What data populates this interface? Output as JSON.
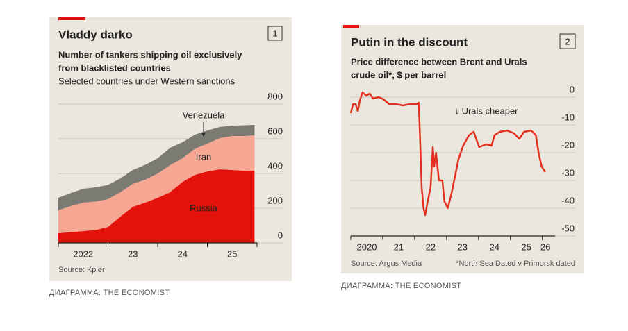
{
  "chart_data": [
    {
      "type": "area",
      "stacked": true,
      "title": "Vladdy darko",
      "badge": "1",
      "subtitle": [
        "Number of tankers shipping oil exclusively",
        "from blacklisted countries"
      ],
      "subtitle2": "Selected countries under Western sanctions",
      "source": "Source: Kpler",
      "x": [
        2022.0,
        2022.25,
        2022.5,
        2022.75,
        2023.0,
        2023.25,
        2023.5,
        2023.75,
        2024.0,
        2024.25,
        2024.5,
        2024.75,
        2025.0,
        2025.25,
        2025.5,
        2025.75,
        2025.95
      ],
      "series": [
        {
          "name": "Russia",
          "color": "#e3120b",
          "values": [
            56,
            62,
            68,
            74,
            92,
            152,
            208,
            232,
            260,
            292,
            352,
            392,
            412,
            424,
            420,
            416,
            416
          ]
        },
        {
          "name": "Iran",
          "color": "#f5a793",
          "values": [
            132,
            150,
            164,
            164,
            160,
            140,
            132,
            132,
            140,
            156,
            136,
            150,
            160,
            180,
            196,
            200,
            204
          ]
        },
        {
          "name": "Venezuela",
          "color": "#7c7b73",
          "values": [
            72,
            75,
            80,
            82,
            82,
            80,
            80,
            86,
            88,
            100,
            92,
            82,
            76,
            64,
            60,
            62,
            60
          ]
        }
      ],
      "xlim": [
        2022,
        2026
      ],
      "xticks": [
        {
          "value": 2022.5,
          "label": "2022"
        },
        {
          "value": 2023.5,
          "label": "23"
        },
        {
          "value": 2024.5,
          "label": "24"
        },
        {
          "value": 2025.5,
          "label": "25"
        }
      ],
      "xtick_marks": [
        2022,
        2023,
        2024,
        2025,
        2026
      ],
      "ylim": [
        0,
        800
      ],
      "yticks": [
        0,
        200,
        400,
        600,
        800
      ],
      "grid": true
    },
    {
      "type": "line",
      "title": "Putin in the discount",
      "badge": "2",
      "subtitle": [
        "Price difference between Brent and Urals",
        "crude oil*, $ per barrel"
      ],
      "source": "Source: Argus Media",
      "note": "*North Sea Dated v Primorsk dated",
      "annotation": "↓ Urals cheaper",
      "x": [
        2020.0,
        2020.07,
        2020.15,
        2020.22,
        2020.28,
        2020.37,
        2020.48,
        2020.59,
        2020.7,
        2020.87,
        2021.02,
        2021.2,
        2021.41,
        2021.63,
        2021.85,
        2022.07,
        2022.13,
        2022.17,
        2022.22,
        2022.28,
        2022.33,
        2022.41,
        2022.5,
        2022.57,
        2022.61,
        2022.67,
        2022.76,
        2022.87,
        2022.93,
        2023.04,
        2023.15,
        2023.26,
        2023.37,
        2023.52,
        2023.7,
        2023.85,
        2024.02,
        2024.24,
        2024.41,
        2024.5,
        2024.67,
        2024.89,
        2025.11,
        2025.28,
        2025.43,
        2025.65,
        2025.8,
        2025.89,
        2025.98,
        2026.09
      ],
      "series": [
        {
          "name": "Brent minus Urals",
          "color": "#e3301f",
          "values": [
            -5.75,
            -2.5,
            -2.5,
            -5,
            -1.25,
            1.75,
            0.5,
            1.25,
            -0.5,
            0,
            -0.75,
            -2.5,
            -2.5,
            -3,
            -2.5,
            -2.5,
            -2,
            -15,
            -32.5,
            -40,
            -42.5,
            -37.5,
            -32.5,
            -18,
            -25,
            -20,
            -30,
            -30,
            -37.5,
            -40,
            -35,
            -28.75,
            -22.5,
            -17.5,
            -13.75,
            -12.5,
            -18,
            -17,
            -17.5,
            -13.75,
            -12.5,
            -12,
            -13,
            -15,
            -12.5,
            -12,
            -13.75,
            -20.5,
            -25,
            -27
          ]
        }
      ],
      "xlim": [
        2020,
        2026.4
      ],
      "xticks": [
        {
          "value": 2020.5,
          "label": "2020"
        },
        {
          "value": 2021.5,
          "label": "21"
        },
        {
          "value": 2022.5,
          "label": "22"
        },
        {
          "value": 2023.5,
          "label": "23"
        },
        {
          "value": 2024.5,
          "label": "24"
        },
        {
          "value": 2025.5,
          "label": "25"
        },
        {
          "value": 2026.1,
          "label": "26"
        }
      ],
      "xtick_marks": [
        2020,
        2021,
        2022,
        2023,
        2024,
        2025,
        2026
      ],
      "ylim": [
        -50,
        0
      ],
      "yticks": [
        0,
        -10,
        -20,
        -30,
        -40,
        -50
      ],
      "grid": true
    }
  ],
  "captions": [
    "ДИАГРАММА: THE ECONOMIST",
    "ДИАГРАММА: THE ECONOMIST"
  ]
}
